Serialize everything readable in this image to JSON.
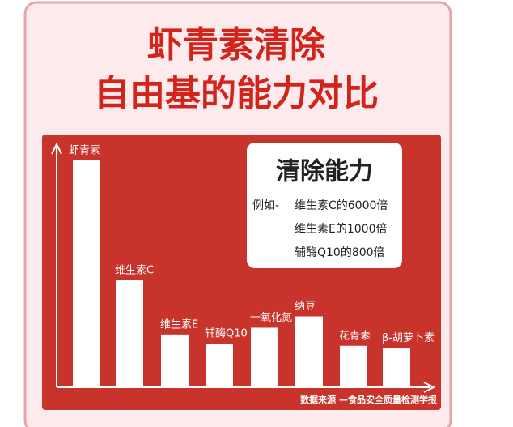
{
  "chart_data": {
    "type": "bar",
    "title": [
      "虾青素清除",
      "自由基的能力对比"
    ],
    "categories": [
      "虾青素",
      "维生素C",
      "维生素E",
      "辅酶Q10",
      "一氧化氮",
      "纳豆",
      "花青素",
      "β-胡萝卜素"
    ],
    "values": [
      100,
      47,
      23,
      19,
      26,
      31,
      18,
      17
    ],
    "color": "#ffffff",
    "ylim": [
      0,
      100
    ],
    "annotation": {
      "heading": "清除能力",
      "prefix": "例如-",
      "lines": [
        "维生素C的6000倍",
        "维生素E的1000倍",
        "辅酶Q10的800倍"
      ]
    },
    "source": "数据来源 —食品安全质量检测学报"
  }
}
